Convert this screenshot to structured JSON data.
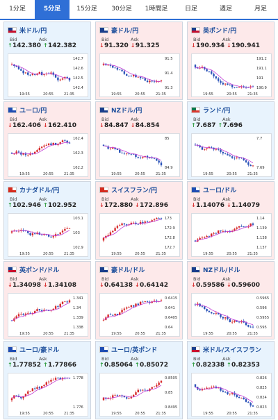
{
  "tabs": [
    "1分足",
    "5分足",
    "15分足",
    "30分足",
    "1時間足",
    "日足",
    "週足",
    "月足"
  ],
  "active_tab": 1,
  "colors": {
    "up_candle": "#d62a2a",
    "down_candle": "#2a52b8",
    "ma_line": "#c23bd4",
    "up_bg": "#e8f3fd",
    "down_bg": "#fde9ea"
  },
  "labels": {
    "bid": "Bid",
    "ask": "Ask"
  },
  "time_labels": [
    "19:55",
    "20:55",
    "21:35"
  ],
  "pairs": [
    {
      "name": "米ドル/円",
      "dir": "up",
      "bid": "142.380",
      "ask": "142.382",
      "flag": "us",
      "yticks": [
        "142.7",
        "142.6",
        "142.5",
        "142.4"
      ],
      "trend": "down"
    },
    {
      "name": "豪ドル/円",
      "dir": "down",
      "bid": "91.320",
      "ask": "91.325",
      "flag": "au",
      "yticks": [
        "91.5",
        "91.4",
        "91.3"
      ],
      "trend": "down"
    },
    {
      "name": "英ポンド/円",
      "dir": "down",
      "bid": "190.934",
      "ask": "190.941",
      "flag": "gb",
      "yticks": [
        "191.2",
        "191.1",
        "191",
        "190.9"
      ],
      "trend": "down"
    },
    {
      "name": "ユーロ/円",
      "dir": "down",
      "bid": "162.406",
      "ask": "162.410",
      "flag": "eu",
      "yticks": [
        "162.4",
        "162.3",
        "162.2"
      ],
      "trend": "flat"
    },
    {
      "name": "NZドル/円",
      "dir": "down",
      "bid": "84.847",
      "ask": "84.854",
      "flag": "nz",
      "yticks": [
        "85",
        "84.9"
      ],
      "trend": "down"
    },
    {
      "name": "ランド/円",
      "dir": "up",
      "bid": "7.687",
      "ask": "7.696",
      "flag": "za",
      "yticks": [
        "7.7",
        "7.69"
      ],
      "trend": "down"
    },
    {
      "name": "カナダドル/円",
      "dir": "up",
      "bid": "102.946",
      "ask": "102.952",
      "flag": "ca",
      "yticks": [
        "103.1",
        "103",
        "102.9"
      ],
      "trend": "flat"
    },
    {
      "name": "スイスフラン/円",
      "dir": "down",
      "bid": "172.880",
      "ask": "172.896",
      "flag": "ch",
      "yticks": [
        "173",
        "172.9",
        "172.8",
        "172.7"
      ],
      "trend": "up"
    },
    {
      "name": "ユーロ/ドル",
      "dir": "down",
      "bid": "1.14076",
      "ask": "1.14079",
      "flag": "eu",
      "yticks": [
        "1.14",
        "1.139",
        "1.138",
        "1.137"
      ],
      "trend": "up"
    },
    {
      "name": "英ポンド/ドル",
      "dir": "down",
      "bid": "1.34098",
      "ask": "1.34108",
      "flag": "gb",
      "yticks": [
        "1.341",
        "1.34",
        "1.339",
        "1.338"
      ],
      "trend": "up"
    },
    {
      "name": "豪ドル/ドル",
      "dir": "down",
      "bid": "0.64138",
      "ask": "0.64142",
      "flag": "au",
      "yticks": [
        "0.6415",
        "0.641",
        "0.6405",
        "0.64"
      ],
      "trend": "up"
    },
    {
      "name": "NZドル/ドル",
      "dir": "down",
      "bid": "0.59586",
      "ask": "0.59600",
      "flag": "nz",
      "yticks": [
        "0.5965",
        "0.596",
        "0.5955",
        "0.595"
      ],
      "trend": "down"
    },
    {
      "name": "ユーロ/豪ドル",
      "dir": "up",
      "bid": "1.77852",
      "ask": "1.77866",
      "flag": "eu",
      "yticks": [
        "1.778",
        "1.776"
      ],
      "trend": "up"
    },
    {
      "name": "ユーロ/英ポンド",
      "dir": "up",
      "bid": "0.85064",
      "ask": "0.85072",
      "flag": "eu",
      "yticks": [
        "0.8505",
        "0.85",
        "0.8495"
      ],
      "trend": "up"
    },
    {
      "name": "米ドル/スイスフラン",
      "dir": "up",
      "bid": "0.82338",
      "ask": "0.82353",
      "flag": "us",
      "yticks": [
        "0.826",
        "0.825",
        "0.824",
        "0.823"
      ],
      "trend": "down"
    }
  ]
}
